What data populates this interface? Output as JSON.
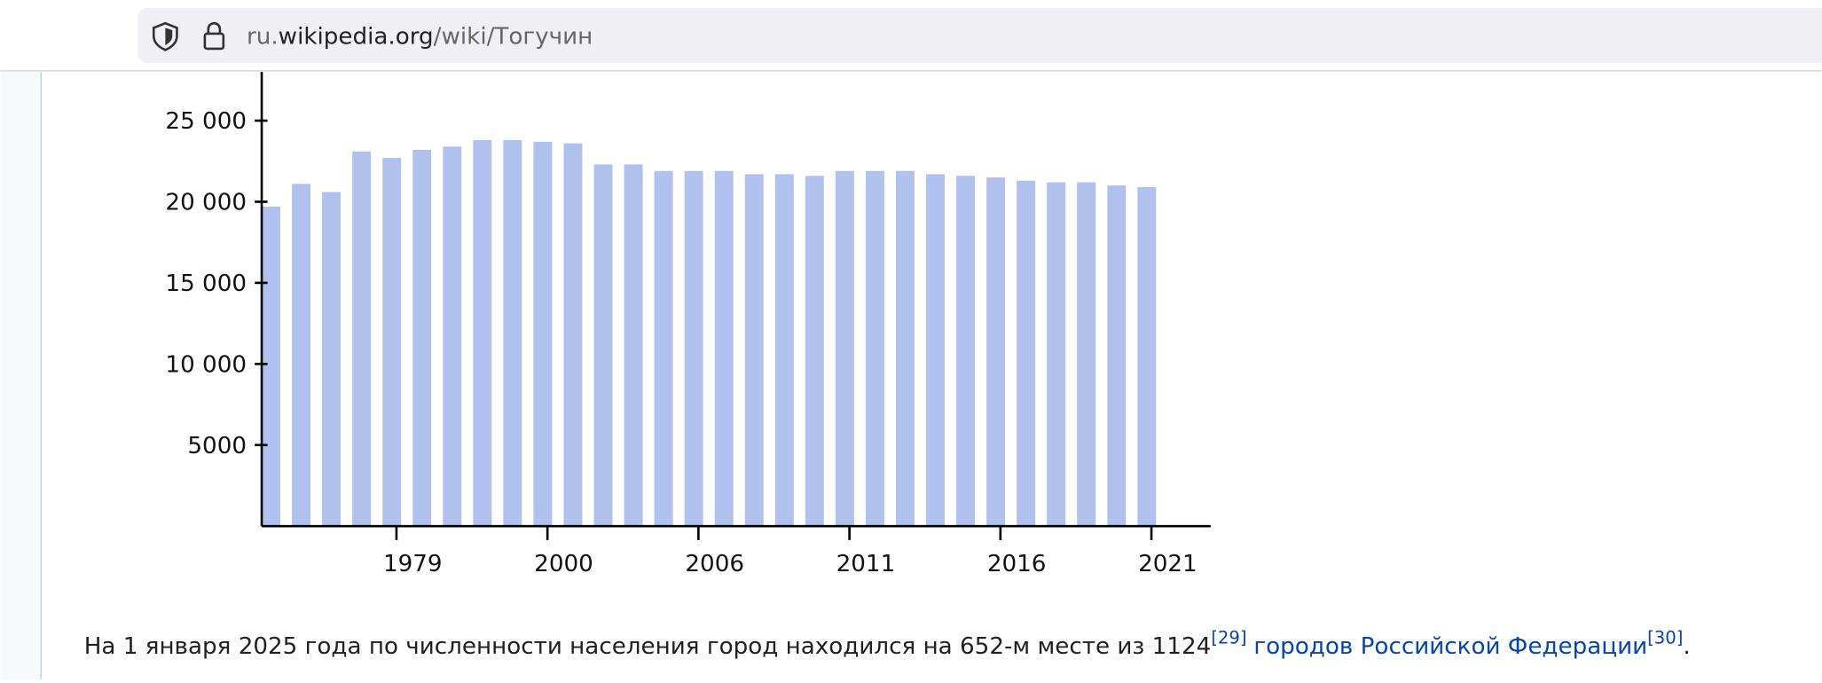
{
  "browser": {
    "url_prefix": "ru.",
    "url_host": "wikipedia.org",
    "url_path": "/wiki/Тогучин"
  },
  "chart_data": {
    "type": "bar",
    "categories": [
      null,
      null,
      null,
      null,
      "1979",
      null,
      null,
      null,
      null,
      "2000",
      null,
      null,
      null,
      null,
      "2006",
      null,
      null,
      null,
      null,
      "2011",
      null,
      null,
      null,
      null,
      "2016",
      null,
      null,
      null,
      null,
      "2021"
    ],
    "values": [
      19700,
      21100,
      20600,
      23100,
      22700,
      23200,
      23400,
      23800,
      23800,
      23700,
      23600,
      22300,
      22300,
      21900,
      21900,
      21900,
      21700,
      21700,
      21600,
      21900,
      21900,
      21900,
      21700,
      21600,
      21500,
      21300,
      21200,
      21200,
      21000,
      20900
    ],
    "color": "#b0c1ee",
    "ylim": [
      0,
      28000
    ],
    "yticks": [
      5000,
      {
        "value": 10000,
        "label": "10 000"
      },
      {
        "value": 15000,
        "label": "15 000"
      },
      {
        "value": 20000,
        "label": "20 000"
      },
      {
        "value": 25000,
        "label": "25 000"
      }
    ]
  },
  "paragraph": {
    "text": "На 1 января 2025 года по численности населения город находился на 652-м месте из 1124",
    "ref1": "[29]",
    "link": "городов Российской Федерации",
    "ref2": "[30]",
    "end": "."
  }
}
